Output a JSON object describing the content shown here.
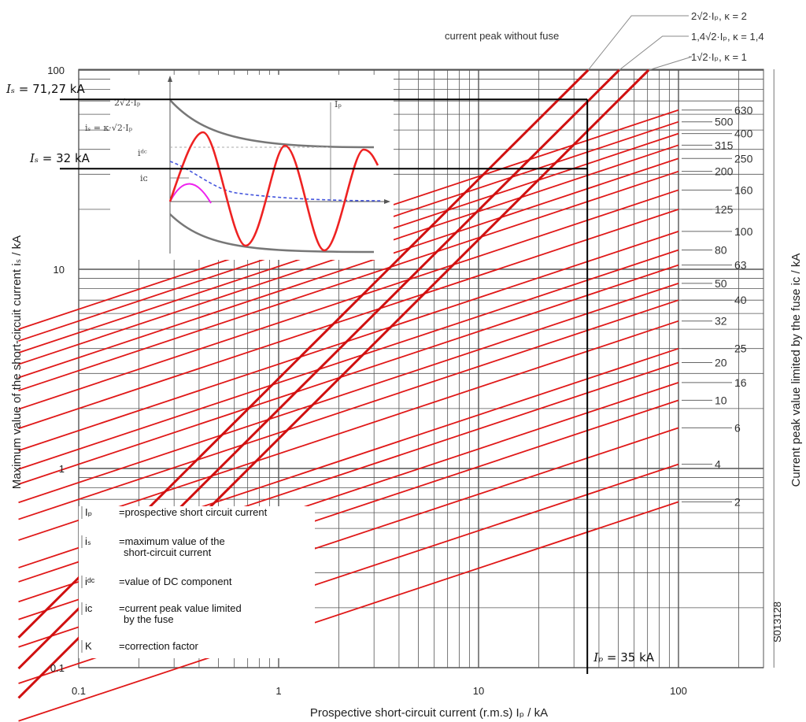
{
  "chart_data": {
    "type": "line",
    "x_scale": "log",
    "y_scale": "log",
    "xlim": [
      0.1,
      300
    ],
    "ylim": [
      0.1,
      100
    ],
    "x_ticks": [
      "0.1",
      "1",
      "10",
      "100"
    ],
    "y_ticks": [
      "0.1",
      "1",
      "10",
      "100"
    ],
    "xlabel": "Prospective short-circuit current (r.m.s) Iₚ / kA",
    "ylabel_left": "Maximum value of the short-circuit current iₛ / kA",
    "ylabel_right": "Current peak value limited by the fuse iᴄ / kA",
    "grid": true,
    "peak_lines": [
      {
        "label": "2√2·Iₚ, κ = 2",
        "k": 2.83
      },
      {
        "label": "1,4√2·Iₚ, κ = 1,4",
        "k": 1.98
      },
      {
        "label": "1√2·Iₚ, κ = 1",
        "k": 1.41
      }
    ],
    "peak_lines_caption": "current peak without fuse",
    "fuse_ratings": [
      {
        "label": "630",
        "y_at_100": 63
      },
      {
        "label": "500",
        "y_at_100": 55
      },
      {
        "label": "400",
        "y_at_100": 48
      },
      {
        "label": "315",
        "y_at_100": 42
      },
      {
        "label": "250",
        "y_at_100": 36
      },
      {
        "label": "200",
        "y_at_100": 31
      },
      {
        "label": "160",
        "y_at_100": 25
      },
      {
        "label": "125",
        "y_at_100": 20
      },
      {
        "label": "100",
        "y_at_100": 15.5
      },
      {
        "label": "80",
        "y_at_100": 12.5
      },
      {
        "label": "63",
        "y_at_100": 10.5
      },
      {
        "label": "50",
        "y_at_100": 8.5
      },
      {
        "label": "40",
        "y_at_100": 7
      },
      {
        "label": "32",
        "y_at_100": 5.5
      },
      {
        "label": "25",
        "y_at_100": 4
      },
      {
        "label": "20",
        "y_at_100": 3.4
      },
      {
        "label": "16",
        "y_at_100": 2.7
      },
      {
        "label": "10",
        "y_at_100": 2.2
      },
      {
        "label": "6",
        "y_at_100": 1.6
      },
      {
        "label": "4",
        "y_at_100": 1.05
      },
      {
        "label": "2",
        "y_at_100": 0.68
      }
    ],
    "annotations": [
      {
        "label": "Iₛ = 71,27 kA",
        "sym": "Iₛ",
        "text": " = 71,27 kA",
        "y": 71.27
      },
      {
        "label": "Iₛ = 32 kA",
        "sym": "Iₛ",
        "text": " = 32 kA",
        "y": 32
      },
      {
        "label": "Iₚ = 35 kA",
        "sym": "Iₚ",
        "text": " = 35 kA",
        "x": 35
      }
    ],
    "legend": [
      {
        "sym": "Iₚ",
        "text": "=prospective short circuit current"
      },
      {
        "sym": "iₛ",
        "text": "=maximum value of the\nshort-circuit current"
      },
      {
        "sym": "iᵈᶜ",
        "text": "=value of DC component"
      },
      {
        "sym": "iᴄ",
        "text": "=current peak value limited\nby the fuse"
      },
      {
        "sym": "K",
        "text": "=correction factor"
      }
    ],
    "inset_labels": [
      "2√2·Iₚ",
      "iₛ = κ·√2·Iₚ",
      "iᵈᶜ",
      "iᴄ",
      "Iₚ"
    ],
    "code": "S013128",
    "colors": {
      "curves": "#e01818",
      "peak": "#d01010",
      "grid": "#555555",
      "dc": "#4455dd",
      "ic": "#ee22ee"
    }
  }
}
